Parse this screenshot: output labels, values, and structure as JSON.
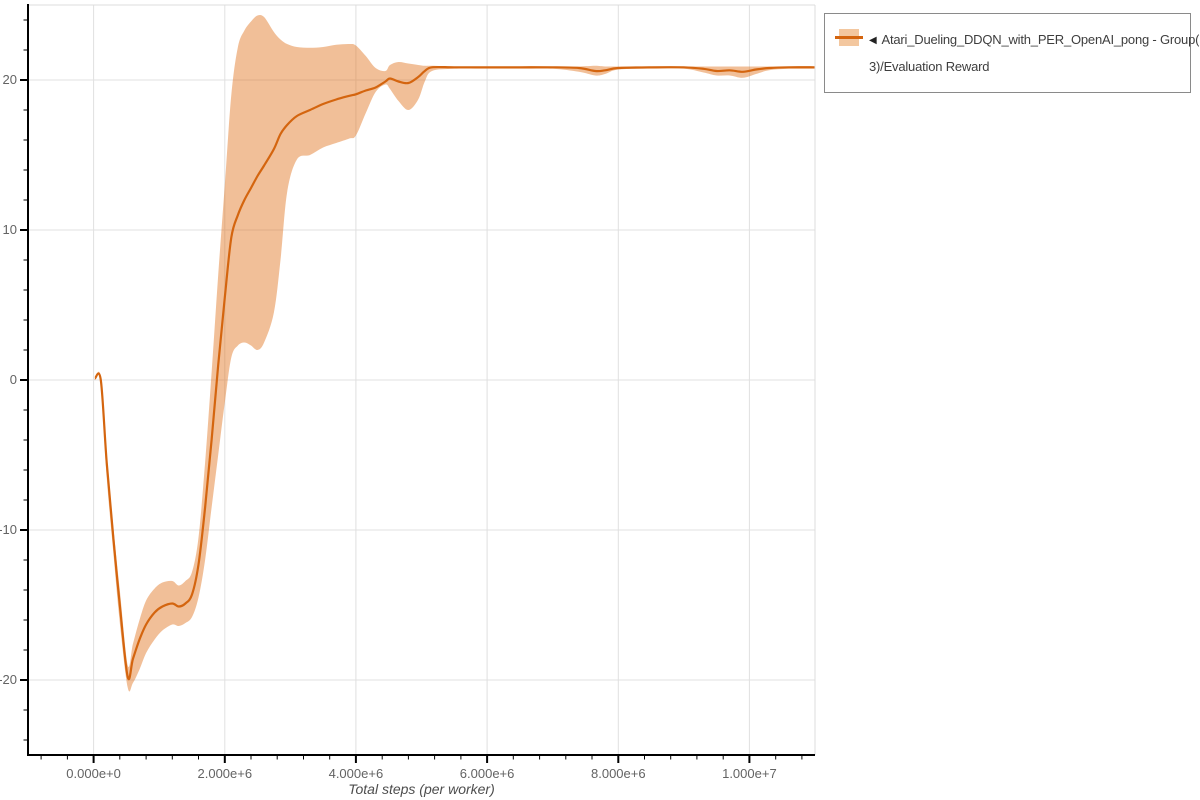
{
  "page": {
    "background": "#ffffff"
  },
  "legend": {
    "marker": "◀",
    "label": "Atari_Dueling_DDQN_with_PER_OpenAI_pong - Group(3)/Evaluation Reward",
    "label_lines": [
      "Atari_Dueling_DDQN_with_PER_OpenAI_pong - Group(",
      "3)/Evaluation Reward"
    ],
    "swatch_fill": "#f3c79f",
    "swatch_line_color": "#d4650f"
  },
  "chart_data": {
    "type": "line",
    "title": "",
    "xlabel": "Total steps (per worker)",
    "ylabel": "",
    "xlim": [
      -1000000,
      11000000
    ],
    "ylim": [
      -25,
      25
    ],
    "grid": true,
    "grid_color": "#e0e0e0",
    "axis_color": "#000000",
    "tick_label_color": "#636363",
    "legend_position": "top-right",
    "x_minor_step": 400000,
    "y_minor_step": 2,
    "x_ticks": [
      {
        "value": 0,
        "label": "0.000e+0"
      },
      {
        "value": 2000000,
        "label": "2.000e+6"
      },
      {
        "value": 4000000,
        "label": "4.000e+6"
      },
      {
        "value": 6000000,
        "label": "6.000e+6"
      },
      {
        "value": 8000000,
        "label": "8.000e+6"
      },
      {
        "value": 10000000,
        "label": "1.000e+7"
      }
    ],
    "y_ticks": [
      {
        "value": 20,
        "label": "20"
      },
      {
        "value": 10,
        "label": "10"
      },
      {
        "value": 0,
        "label": "0"
      },
      {
        "value": -10,
        "label": "-10"
      },
      {
        "value": -20,
        "label": "-20"
      }
    ],
    "series": [
      {
        "name": "Atari_Dueling_DDQN_with_PER_OpenAI_pong - Group(3)/Evaluation Reward",
        "color": "#d4650f",
        "band_color": "rgba(224,114,26,0.45)",
        "x": [
          20000,
          110000,
          200000,
          300000,
          400000,
          520000,
          600000,
          700000,
          800000,
          930000,
          1050000,
          1200000,
          1300000,
          1400000,
          1500000,
          1600000,
          1700000,
          1800000,
          1900000,
          2000000,
          2100000,
          2200000,
          2300000,
          2400000,
          2500000,
          2600000,
          2750000,
          2850000,
          2950000,
          3100000,
          3300000,
          3500000,
          3700000,
          3900000,
          4000000,
          4150000,
          4300000,
          4450000,
          4520000,
          4650000,
          4800000,
          4950000,
          5050000,
          5160000,
          5500000,
          6000000,
          6500000,
          7000000,
          7400000,
          7650000,
          7800000,
          8000000,
          8500000,
          9000000,
          9300000,
          9500000,
          9700000,
          9900000,
          10100000,
          10300000,
          10600000,
          11000000
        ],
        "mean": [
          0.1,
          0.0,
          -5.5,
          -10.5,
          -15.0,
          -19.8,
          -18.6,
          -17.3,
          -16.3,
          -15.5,
          -15.1,
          -14.9,
          -15.1,
          -14.9,
          -14.3,
          -12.3,
          -8.5,
          -4.0,
          1.0,
          5.5,
          9.5,
          11.0,
          12.0,
          12.8,
          13.6,
          14.3,
          15.4,
          16.4,
          17.0,
          17.6,
          18.0,
          18.4,
          18.7,
          18.95,
          19.05,
          19.3,
          19.5,
          19.9,
          20.1,
          19.9,
          19.8,
          20.2,
          20.6,
          20.85,
          20.85,
          20.85,
          20.85,
          20.85,
          20.8,
          20.6,
          20.65,
          20.8,
          20.85,
          20.85,
          20.75,
          20.6,
          20.65,
          20.55,
          20.7,
          20.8,
          20.85,
          20.85
        ],
        "lower": [
          0.1,
          -0.2,
          -6.5,
          -11.5,
          -16.2,
          -20.5,
          -20.2,
          -19.3,
          -18.2,
          -17.3,
          -16.7,
          -16.3,
          -16.4,
          -16.2,
          -15.8,
          -14.5,
          -12.0,
          -8.5,
          -5.0,
          -1.5,
          1.5,
          2.3,
          2.5,
          2.3,
          2.0,
          2.5,
          4.5,
          8.0,
          12.5,
          14.7,
          15.0,
          15.5,
          15.8,
          16.1,
          16.3,
          17.8,
          19.2,
          19.7,
          19.4,
          18.6,
          18.0,
          18.7,
          19.9,
          20.6,
          20.75,
          20.75,
          20.75,
          20.75,
          20.55,
          20.3,
          20.4,
          20.7,
          20.75,
          20.75,
          20.5,
          20.3,
          20.3,
          20.15,
          20.4,
          20.65,
          20.75,
          20.75
        ],
        "upper": [
          0.1,
          0.2,
          -5.0,
          -9.8,
          -14.0,
          -19.0,
          -17.6,
          -16.0,
          -14.7,
          -13.9,
          -13.5,
          -13.4,
          -13.7,
          -13.4,
          -12.8,
          -10.5,
          -5.5,
          0.5,
          7.0,
          13.0,
          19.0,
          22.2,
          23.3,
          23.9,
          24.3,
          24.2,
          23.2,
          22.7,
          22.4,
          22.2,
          22.15,
          22.2,
          22.35,
          22.4,
          22.3,
          21.6,
          20.8,
          20.6,
          21.0,
          21.2,
          21.1,
          21.0,
          20.95,
          20.95,
          20.9,
          20.9,
          20.9,
          20.9,
          20.9,
          20.95,
          20.9,
          20.9,
          20.9,
          20.9,
          20.9,
          20.9,
          20.9,
          20.9,
          20.9,
          20.9,
          20.9,
          20.9
        ]
      }
    ]
  }
}
